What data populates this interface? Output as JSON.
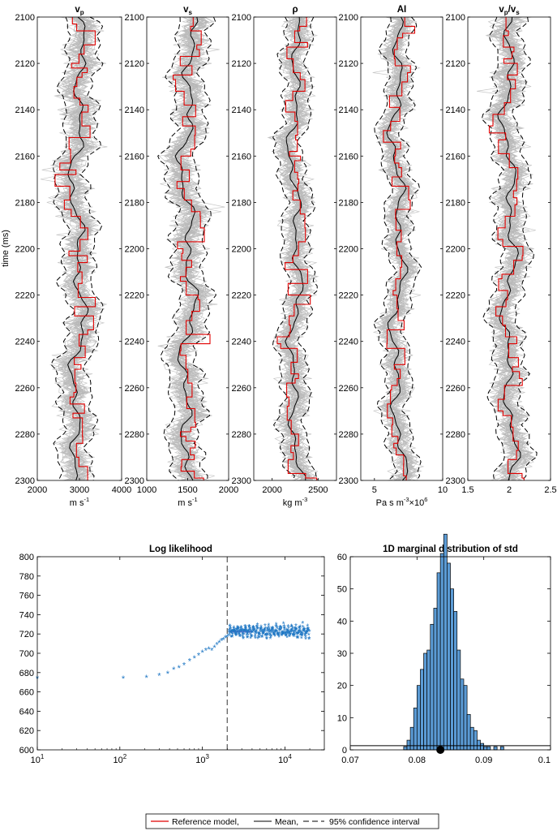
{
  "figure": {
    "time_axis_label": "time (ms)",
    "legend": {
      "reference": "Reference model,",
      "mean": "Mean,",
      "ci": "95% confidence interval"
    }
  },
  "chart_data": [
    {
      "id": "vp",
      "type": "line",
      "title_main": "v",
      "title_sub": "p",
      "title_rest": "",
      "xlabel_main": "m s",
      "xlabel_sup": "-1",
      "xlim": [
        2000,
        4000
      ],
      "ylim": [
        2100,
        2300
      ],
      "xticks": [
        2000,
        3000,
        4000
      ],
      "xtick_labels": [
        "2000",
        "3000",
        "4000"
      ],
      "yticks": [
        2100,
        2120,
        2140,
        2160,
        2180,
        2200,
        2220,
        2240,
        2260,
        2280,
        2300
      ],
      "center": 2960,
      "spread": 520,
      "amp": 380,
      "series": [
        "Reference model",
        "Mean",
        "95% confidence interval",
        "Posterior samples"
      ]
    },
    {
      "id": "vs",
      "type": "line",
      "title_main": "v",
      "title_sub": "s",
      "title_rest": "",
      "xlabel_main": "m s",
      "xlabel_sup": "-1",
      "xlim": [
        1000,
        2000
      ],
      "ylim": [
        2100,
        2300
      ],
      "xticks": [
        1000,
        1500,
        2000
      ],
      "xtick_labels": [
        "1000",
        "1500",
        "2000"
      ],
      "yticks": [
        2100,
        2120,
        2140,
        2160,
        2180,
        2200,
        2220,
        2240,
        2260,
        2280,
        2300
      ],
      "center": 1500,
      "spread": 270,
      "amp": 210,
      "series": [
        "Reference model",
        "Mean",
        "95% confidence interval",
        "Posterior samples"
      ]
    },
    {
      "id": "rho",
      "type": "line",
      "title_main": "ρ",
      "title_sub": "",
      "title_rest": "",
      "xlabel_main": "kg m",
      "xlabel_sup": "-3",
      "xlim": [
        1800,
        2700
      ],
      "ylim": [
        2100,
        2300
      ],
      "xticks": [
        2000,
        2500
      ],
      "xtick_labels": [
        "2000",
        "2500"
      ],
      "yticks": [
        2100,
        2120,
        2140,
        2160,
        2180,
        2200,
        2220,
        2240,
        2260,
        2280,
        2300
      ],
      "center": 2250,
      "spread": 200,
      "amp": 150,
      "series": [
        "Reference model",
        "Mean",
        "95% confidence interval",
        "Posterior samples"
      ]
    },
    {
      "id": "ai",
      "type": "line",
      "title_main": "AI",
      "title_sub": "",
      "title_rest": "",
      "xlabel_main": "Pa s m",
      "xlabel_sup": "-3",
      "xlabel_tail": "×10",
      "xlabel_tail_sup": "6",
      "xlim": [
        4,
        10
      ],
      "ylim": [
        2100,
        2300
      ],
      "xticks": [
        5,
        10
      ],
      "xtick_labels": [
        "5",
        "10"
      ],
      "yticks": [
        2100,
        2120,
        2140,
        2160,
        2180,
        2200,
        2220,
        2240,
        2260,
        2280,
        2300
      ],
      "center": 6.7,
      "spread": 1.3,
      "amp": 1.1,
      "series": [
        "Reference model",
        "Mean",
        "95% confidence interval",
        "Posterior samples"
      ]
    },
    {
      "id": "vpvs",
      "type": "line",
      "title_main": "v",
      "title_sub": "p",
      "title_rest": "/v",
      "title_sub2": "s",
      "xlabel_main": "",
      "xlabel_sup": "",
      "xlim": [
        1.5,
        2.5
      ],
      "ylim": [
        2100,
        2300
      ],
      "xticks": [
        1.5,
        2,
        2.5
      ],
      "xtick_labels": [
        "1.5",
        "2",
        "2.5"
      ],
      "yticks": [
        2100,
        2120,
        2140,
        2160,
        2180,
        2200,
        2220,
        2240,
        2260,
        2280,
        2300
      ],
      "center": 2.0,
      "spread": 0.25,
      "amp": 0.18,
      "series": [
        "Reference model",
        "Mean",
        "95% confidence interval",
        "Posterior samples"
      ]
    },
    {
      "id": "loglik",
      "type": "scatter",
      "title": "Log likelihood",
      "xscale": "log",
      "xlim": [
        10,
        30000
      ],
      "ylim": [
        600,
        800
      ],
      "xticks": [
        10,
        100,
        1000,
        10000
      ],
      "xtick_base": "10",
      "xtick_exps": [
        "1",
        "2",
        "3",
        "4"
      ],
      "yticks": [
        600,
        620,
        640,
        660,
        680,
        700,
        720,
        740,
        760,
        780,
        800
      ],
      "burn_in": 2000,
      "early_points": [
        [
          10,
          674
        ],
        [
          110,
          674
        ],
        [
          210,
          675
        ],
        [
          300,
          677
        ],
        [
          380,
          679
        ],
        [
          450,
          683
        ],
        [
          520,
          685
        ],
        [
          600,
          688
        ],
        [
          700,
          692
        ],
        [
          800,
          695
        ],
        [
          900,
          698
        ],
        [
          1000,
          701
        ],
        [
          1100,
          703
        ],
        [
          1200,
          704
        ],
        [
          1300,
          703
        ],
        [
          1400,
          706
        ],
        [
          1500,
          709
        ],
        [
          1600,
          711
        ],
        [
          1700,
          713
        ],
        [
          1800,
          714
        ],
        [
          1900,
          716
        ],
        [
          2000,
          717
        ],
        [
          2100,
          718
        ]
      ],
      "plateau": {
        "x_start": 2100,
        "x_end": 20000,
        "mean": 722,
        "min": 714,
        "max": 731
      },
      "marker": "*"
    },
    {
      "id": "std_hist",
      "type": "bar",
      "title": "1D marginal distribution of std",
      "xlim": [
        0.07,
        0.1
      ],
      "ylim": [
        0,
        60
      ],
      "xticks": [
        0.07,
        0.08,
        0.09,
        0.1
      ],
      "xtick_labels": [
        "0.07",
        "0.08",
        "0.09",
        "0.1"
      ],
      "yticks": [
        0,
        10,
        20,
        30,
        40,
        50,
        60
      ],
      "bin_width": 0.0005,
      "bins": [
        [
          0.078,
          1
        ],
        [
          0.0785,
          3
        ],
        [
          0.079,
          7
        ],
        [
          0.0795,
          13
        ],
        [
          0.08,
          20
        ],
        [
          0.0805,
          25
        ],
        [
          0.081,
          30
        ],
        [
          0.0815,
          31
        ],
        [
          0.082,
          39
        ],
        [
          0.0825,
          44
        ],
        [
          0.083,
          55
        ],
        [
          0.0835,
          61
        ],
        [
          0.084,
          67
        ],
        [
          0.0845,
          58
        ],
        [
          0.085,
          50
        ],
        [
          0.0855,
          43
        ],
        [
          0.086,
          31
        ],
        [
          0.0865,
          22
        ],
        [
          0.087,
          20
        ],
        [
          0.0875,
          11
        ],
        [
          0.088,
          7
        ],
        [
          0.0885,
          6
        ],
        [
          0.089,
          3
        ],
        [
          0.0895,
          2
        ],
        [
          0.09,
          1
        ],
        [
          0.0905,
          1
        ],
        [
          0.0915,
          1
        ],
        [
          0.0925,
          1
        ]
      ],
      "reference_line_y": 1.3,
      "reference_value": 0.0835
    }
  ]
}
